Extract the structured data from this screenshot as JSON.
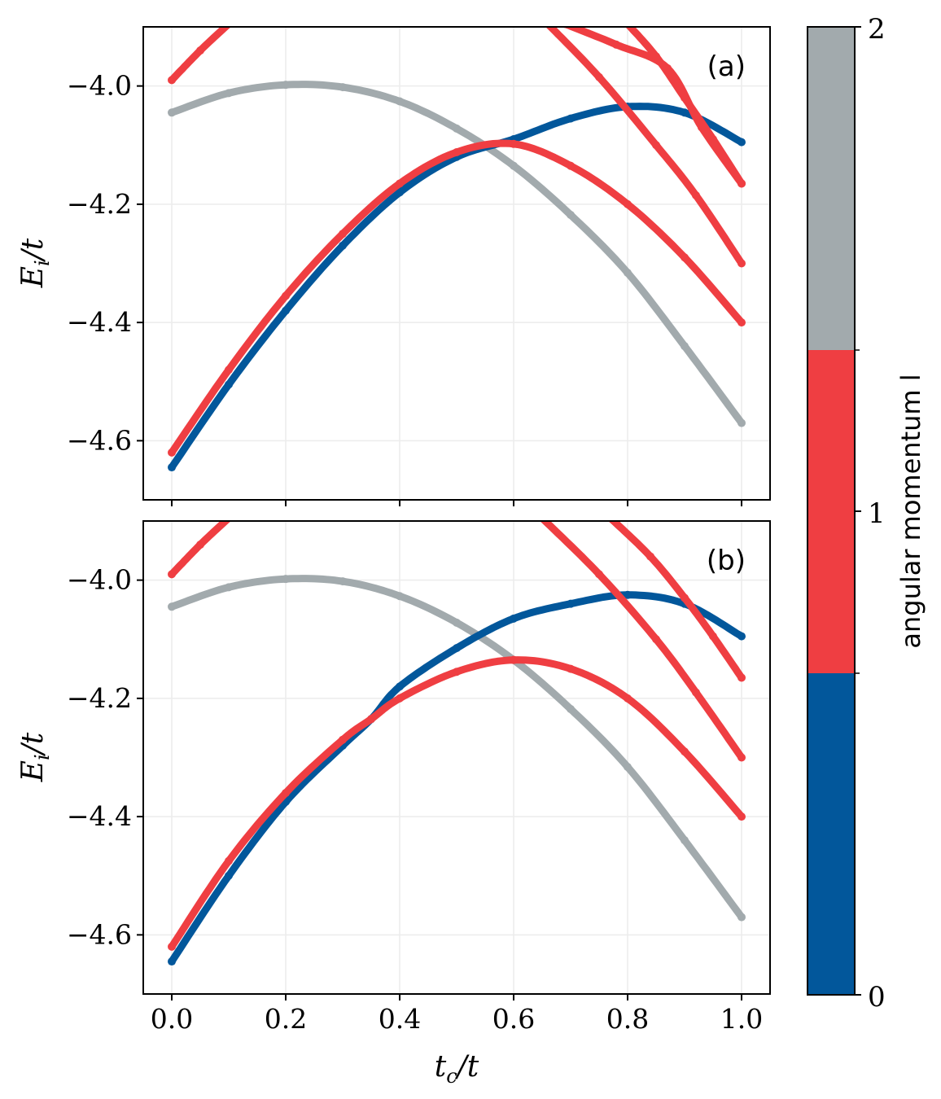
{
  "colors": {
    "l0": "#02579b",
    "l1": "#ef3e42",
    "l2": "#a2aaad",
    "grid": "#ececec"
  },
  "colorbar": {
    "label": "angular momentum l",
    "ticks": [
      "0",
      "1",
      "2"
    ]
  },
  "chart_data": [
    {
      "type": "scatter",
      "panel_label": "(a)",
      "xlabel": "t_c/t",
      "ylabel": "E_i/t",
      "xlim": [
        -0.05,
        1.05
      ],
      "ylim": [
        -4.7,
        -3.9
      ],
      "yticks": [
        -4.0,
        -4.2,
        -4.4,
        -4.6
      ],
      "ytick_labels": [
        "−4.0",
        "−4.2",
        "−4.4",
        "−4.6"
      ],
      "xticks": [
        0.0,
        0.2,
        0.4,
        0.6,
        0.8,
        1.0
      ],
      "series": [
        {
          "name": "l=2 branch",
          "l": 2,
          "x": [
            0.0,
            0.1,
            0.2,
            0.3,
            0.4,
            0.5,
            0.6,
            0.7,
            0.8,
            0.9,
            1.0
          ],
          "y": [
            -4.045,
            -4.012,
            -3.998,
            -4.002,
            -4.026,
            -4.072,
            -4.135,
            -4.218,
            -4.316,
            -4.44,
            -4.57
          ]
        },
        {
          "name": "l=0 branch",
          "l": 0,
          "x": [
            0.0,
            0.1,
            0.2,
            0.3,
            0.4,
            0.5,
            0.6,
            0.7,
            0.8,
            0.9,
            1.0
          ],
          "y": [
            -4.645,
            -4.505,
            -4.38,
            -4.27,
            -4.18,
            -4.12,
            -4.09,
            -4.055,
            -4.035,
            -4.045,
            -4.095
          ]
        },
        {
          "name": "l=1 branch A",
          "l": 1,
          "x": [
            0.0,
            0.1,
            0.2,
            0.3,
            0.4,
            0.5,
            0.6,
            0.7,
            0.8,
            0.9,
            1.0
          ],
          "y": [
            -4.62,
            -4.48,
            -4.355,
            -4.25,
            -4.165,
            -4.112,
            -4.098,
            -4.135,
            -4.2,
            -4.29,
            -4.4
          ]
        },
        {
          "name": "l=1 branch B",
          "l": 1,
          "x": [
            0.0,
            0.05,
            0.1
          ],
          "y": [
            -3.99,
            -3.94,
            -3.895
          ]
        },
        {
          "name": "l=1 branch C",
          "l": 1,
          "x": [
            0.66,
            0.75,
            0.85,
            0.92,
            1.0
          ],
          "y": [
            -3.895,
            -3.985,
            -4.1,
            -4.185,
            -4.3
          ]
        },
        {
          "name": "l=1 branch D",
          "l": 1,
          "x": [
            0.69,
            0.78,
            0.87,
            0.93,
            1.0
          ],
          "y": [
            -3.895,
            -3.93,
            -3.97,
            -4.07,
            -4.165
          ]
        },
        {
          "name": "l=1 branch E",
          "l": 1,
          "x": [
            0.8,
            0.85,
            0.9,
            0.95,
            1.0
          ],
          "y": [
            -3.895,
            -3.95,
            -4.02,
            -4.09,
            -4.165
          ]
        }
      ]
    },
    {
      "type": "scatter",
      "panel_label": "(b)",
      "xlabel": "t_c/t",
      "ylabel": "E_i/t",
      "xlim": [
        -0.05,
        1.05
      ],
      "ylim": [
        -4.7,
        -3.9
      ],
      "yticks": [
        -4.0,
        -4.2,
        -4.4,
        -4.6
      ],
      "ytick_labels": [
        "−4.0",
        "−4.2",
        "−4.4",
        "−4.6"
      ],
      "xticks": [
        0.0,
        0.2,
        0.4,
        0.6,
        0.8,
        1.0
      ],
      "xtick_labels": [
        "0.0",
        "0.2",
        "0.4",
        "0.6",
        "0.8",
        "1.0"
      ],
      "series": [
        {
          "name": "l=2 branch",
          "l": 2,
          "x": [
            0.0,
            0.1,
            0.2,
            0.3,
            0.4,
            0.5,
            0.6,
            0.7,
            0.8,
            0.9,
            1.0
          ],
          "y": [
            -4.045,
            -4.012,
            -3.998,
            -4.002,
            -4.027,
            -4.072,
            -4.135,
            -4.218,
            -4.316,
            -4.44,
            -4.57
          ]
        },
        {
          "name": "l=0 branch",
          "l": 0,
          "x": [
            0.0,
            0.1,
            0.2,
            0.3,
            0.35,
            0.4,
            0.5,
            0.6,
            0.7,
            0.8,
            0.9,
            1.0
          ],
          "y": [
            -4.645,
            -4.5,
            -4.375,
            -4.28,
            -4.235,
            -4.18,
            -4.115,
            -4.065,
            -4.04,
            -4.025,
            -4.04,
            -4.095
          ]
        },
        {
          "name": "l=1 branch A",
          "l": 1,
          "x": [
            0.0,
            0.1,
            0.2,
            0.3,
            0.35,
            0.4,
            0.5,
            0.6,
            0.7,
            0.8,
            0.9,
            1.0
          ],
          "y": [
            -4.62,
            -4.475,
            -4.36,
            -4.27,
            -4.235,
            -4.2,
            -4.155,
            -4.135,
            -4.15,
            -4.2,
            -4.29,
            -4.4
          ]
        },
        {
          "name": "l=1 branch B",
          "l": 1,
          "x": [
            0.0,
            0.05,
            0.1
          ],
          "y": [
            -3.99,
            -3.94,
            -3.895
          ]
        },
        {
          "name": "l=1 branch C",
          "l": 1,
          "x": [
            0.65,
            0.75,
            0.85,
            0.92,
            1.0
          ],
          "y": [
            -3.895,
            -3.99,
            -4.1,
            -4.19,
            -4.3
          ]
        },
        {
          "name": "l=1 branch D",
          "l": 1,
          "x": [
            0.77,
            0.84,
            0.9,
            0.95,
            1.0
          ],
          "y": [
            -3.895,
            -3.96,
            -4.03,
            -4.095,
            -4.165
          ]
        }
      ]
    }
  ]
}
